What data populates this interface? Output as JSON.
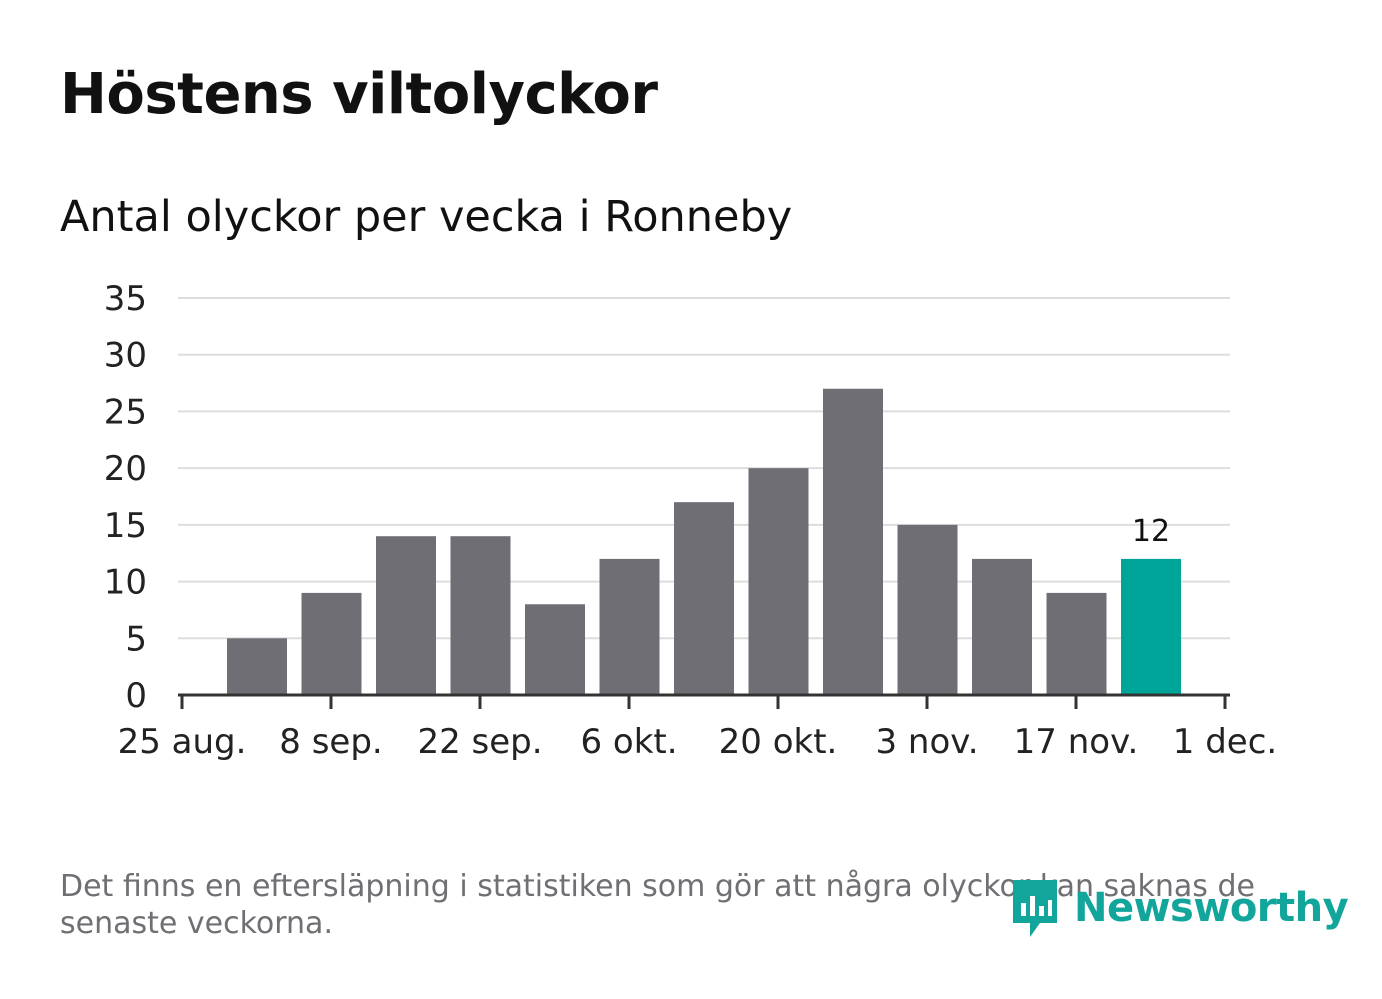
{
  "header": {
    "title": "Höstens viltolyckor",
    "subtitle": "Antal olyckor per vecka i Ronneby"
  },
  "footer": {
    "note": "Det finns en eftersläpning i statistiken som gör att några olyckor kan saknas de senaste veckorna.",
    "logo_text": "Newsworthy"
  },
  "colors": {
    "bar": "#6f6e74",
    "highlight": "#00a59a",
    "grid": "#dddddd",
    "axis": "#333333"
  },
  "chart_data": {
    "type": "bar",
    "title": "Höstens viltolyckor",
    "subtitle": "Antal olyckor per vecka i Ronneby",
    "xlabel": "",
    "ylabel": "",
    "ylim": [
      0,
      35
    ],
    "y_ticks": [
      "0",
      "5",
      "10",
      "15",
      "20",
      "25",
      "30",
      "35"
    ],
    "x_ticks": [
      "25 aug.",
      "8 sep.",
      "22 sep.",
      "6 okt.",
      "20 okt.",
      "3 nov.",
      "17 nov.",
      "1 dec."
    ],
    "values": [
      5,
      9,
      14,
      14,
      8,
      12,
      17,
      20,
      27,
      15,
      12,
      9,
      12
    ],
    "highlight_index": 12,
    "data_labels": [
      {
        "index": 12,
        "text": "12"
      }
    ],
    "grid": true,
    "legend": "none"
  }
}
